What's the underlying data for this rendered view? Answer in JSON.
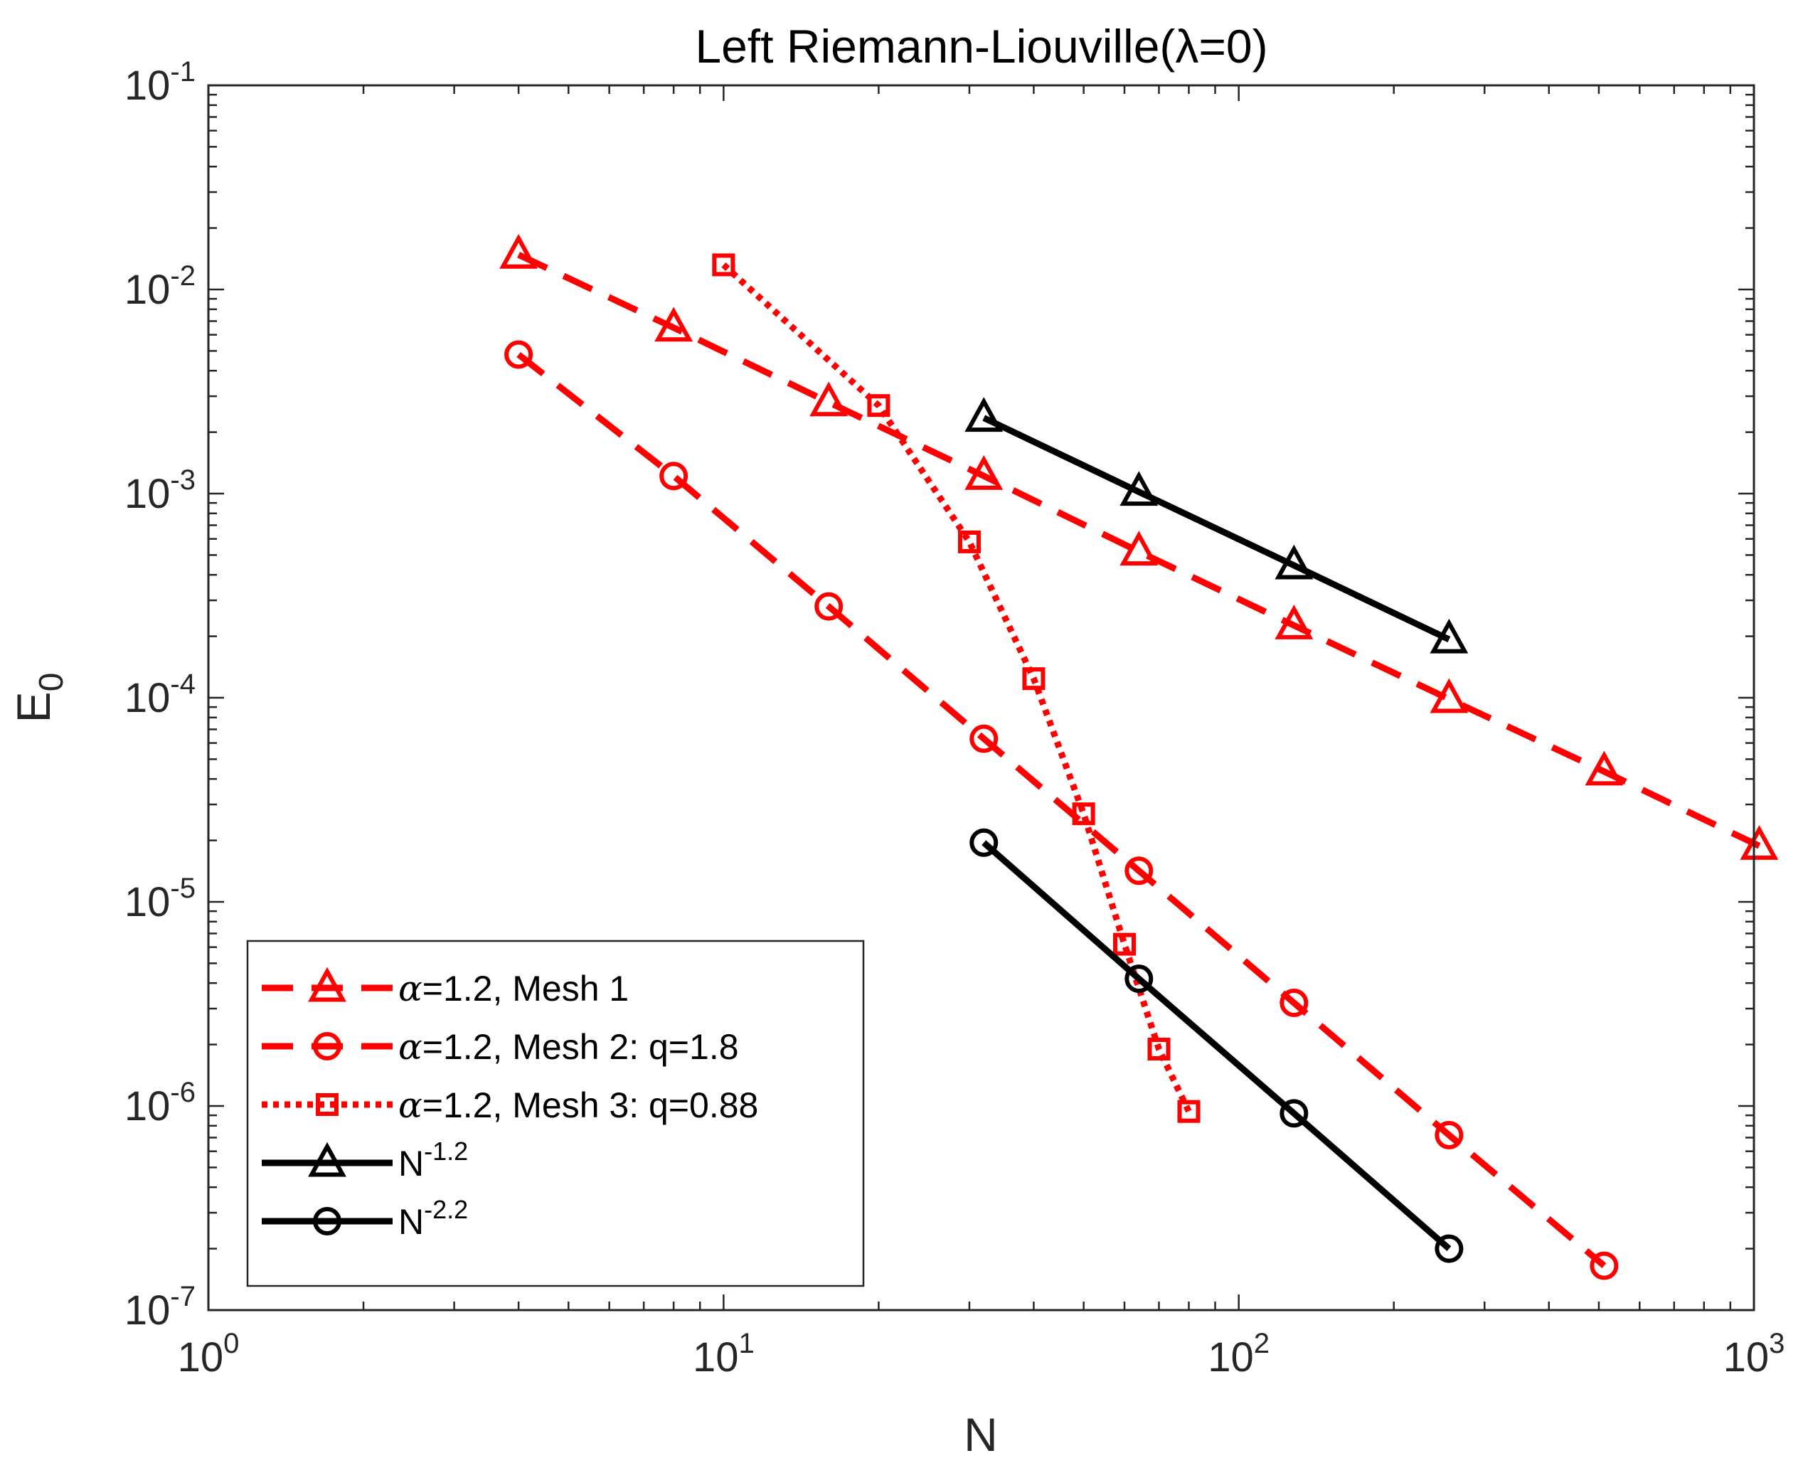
{
  "chart_data": {
    "type": "line",
    "scale": "log-log",
    "title": "Left Riemann-Liouville(λ=0)",
    "xlabel": "N",
    "ylabel": "E",
    "ylabel_subscript": "0",
    "xlim": [
      1,
      1000
    ],
    "ylim": [
      1e-07,
      0.1
    ],
    "grid": false,
    "box": true,
    "x_ticks": [
      {
        "value": 1,
        "base": "10",
        "exp": "0"
      },
      {
        "value": 10,
        "base": "10",
        "exp": "1"
      },
      {
        "value": 100,
        "base": "10",
        "exp": "2"
      },
      {
        "value": 1000,
        "base": "10",
        "exp": "3"
      }
    ],
    "y_ticks": [
      {
        "value": 1e-07,
        "base": "10",
        "exp": "-7"
      },
      {
        "value": 1e-06,
        "base": "10",
        "exp": "-6"
      },
      {
        "value": 1e-05,
        "base": "10",
        "exp": "-5"
      },
      {
        "value": 0.0001,
        "base": "10",
        "exp": "-4"
      },
      {
        "value": 0.001,
        "base": "10",
        "exp": "-3"
      },
      {
        "value": 0.01,
        "base": "10",
        "exp": "-2"
      },
      {
        "value": 0.1,
        "base": "10",
        "exp": "-1"
      }
    ],
    "legend_position": "bottom-left",
    "series": [
      {
        "name": "α=1.2, Mesh 1",
        "legend_parts": {
          "greek": "α",
          "text": "=1.2, Mesh 1"
        },
        "color": "#ff0000",
        "line": "dashed",
        "marker": "triangle",
        "x": [
          4,
          8,
          16,
          32,
          64,
          128,
          256,
          512,
          1024
        ],
        "y": [
          0.0148,
          0.0065,
          0.0028,
          0.00122,
          0.00052,
          0.000226,
          9.85e-05,
          4.35e-05,
          1.88e-05
        ]
      },
      {
        "name": "α=1.2, Mesh 2: q=1.8",
        "legend_parts": {
          "greek": "α",
          "text": "=1.2, Mesh 2: q=1.8"
        },
        "color": "#ff0000",
        "line": "dashed",
        "marker": "circle",
        "x": [
          4,
          8,
          16,
          32,
          64,
          128,
          256,
          512
        ],
        "y": [
          0.0048,
          0.00122,
          0.00028,
          6.3e-05,
          1.42e-05,
          3.2e-06,
          7.2e-07,
          1.65e-07
        ]
      },
      {
        "name": "α=1.2, Mesh 3: q=0.88",
        "legend_parts": {
          "greek": "α",
          "text": "=1.2, Mesh 3: q=0.88"
        },
        "color": "#ff0000",
        "line": "dotted",
        "marker": "square",
        "x": [
          10,
          20,
          30,
          40,
          50,
          60,
          70,
          80
        ],
        "y": [
          0.0132,
          0.0027,
          0.00058,
          0.000124,
          2.7e-05,
          6.2e-06,
          1.9e-06,
          9.4e-07
        ]
      },
      {
        "name": "N^-1.2",
        "legend_parts": {
          "base": "N",
          "exp": "-1.2"
        },
        "color": "#000000",
        "line": "solid",
        "marker": "triangle",
        "x": [
          32,
          64,
          128,
          256
        ],
        "y": [
          0.00235,
          0.00102,
          0.000445,
          0.000193
        ]
      },
      {
        "name": "N^-2.2",
        "legend_parts": {
          "base": "N",
          "exp": "-2.2"
        },
        "color": "#000000",
        "line": "solid",
        "marker": "circle",
        "x": [
          32,
          64,
          128,
          256
        ],
        "y": [
          1.95e-05,
          4.2e-06,
          9.2e-07,
          2e-07
        ]
      }
    ]
  }
}
